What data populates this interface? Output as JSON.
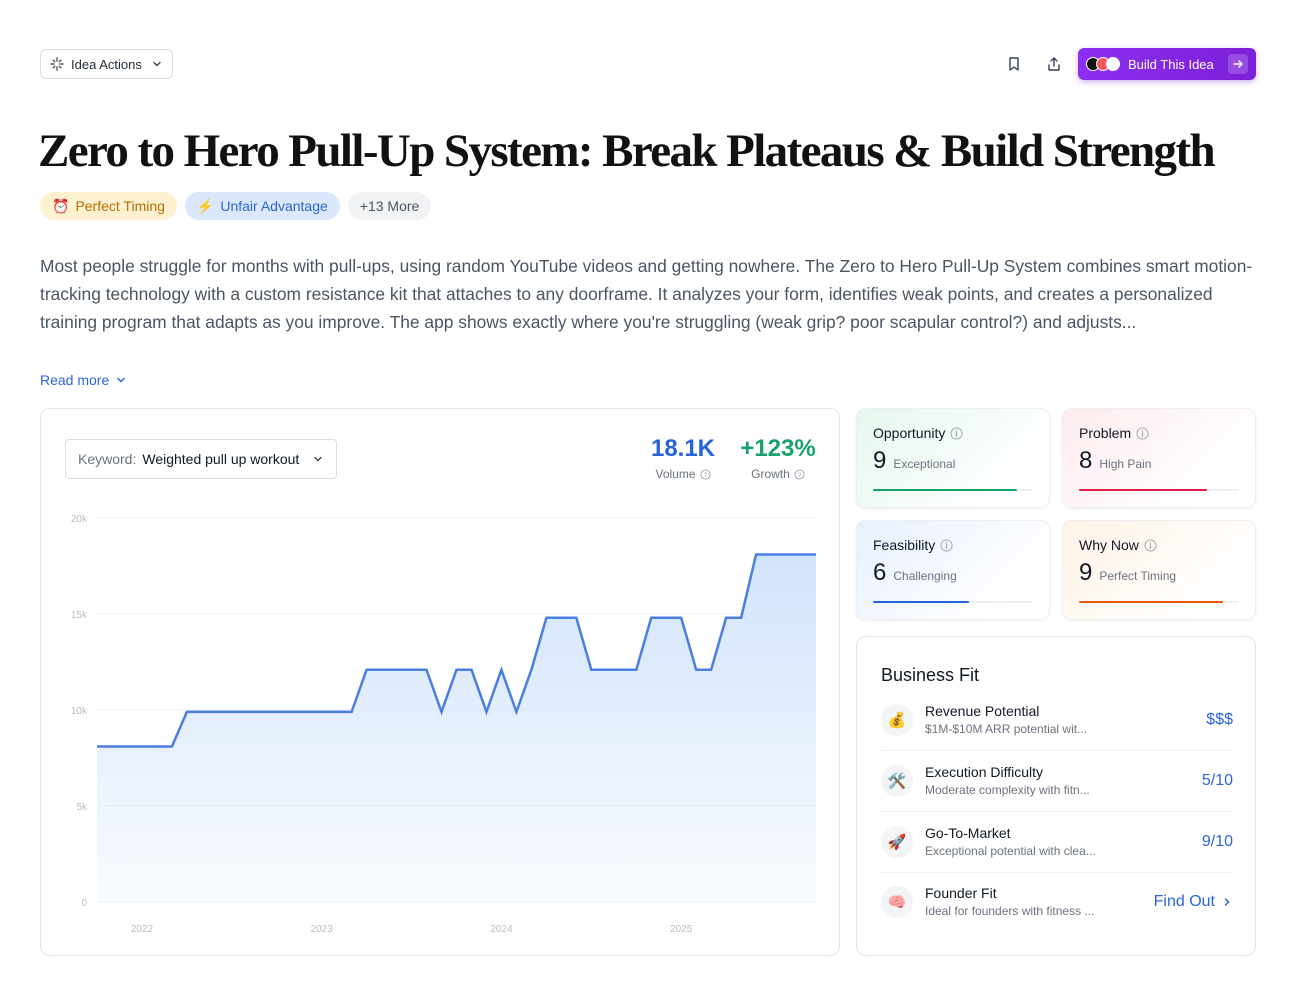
{
  "header": {
    "idea_actions_label": "Idea Actions",
    "build_label": "Build This Idea"
  },
  "title": "Zero to Hero Pull-Up System: Break Plateaus & Build Strength",
  "tags": [
    {
      "icon": "⏰",
      "label": "Perfect Timing"
    },
    {
      "icon": "⚡",
      "label": "Unfair Advantage"
    },
    {
      "label": "+13 More"
    }
  ],
  "description": "Most people struggle for months with pull-ups, using random YouTube videos and getting nowhere. The Zero to Hero Pull-Up System combines smart motion-tracking technology with a custom resistance kit that attaches to any doorframe. It analyzes your form, identifies weak points, and creates a personalized training program that adapts as you improve. The app shows exactly where you're struggling (weak grip? poor scapular control?) and adjusts...",
  "read_more_label": "Read more",
  "keyword": {
    "label": "Keyword:",
    "value": "Weighted pull up workout"
  },
  "stats": {
    "volume": {
      "value": "18.1K",
      "label": "Volume",
      "color": "#2563d9"
    },
    "growth": {
      "value": "+123%",
      "label": "Growth",
      "color": "#16a36a"
    }
  },
  "chart_data": {
    "type": "area",
    "ylim": [
      0,
      20000
    ],
    "yticks": [
      "0",
      "5k",
      "10k",
      "15k",
      "20k"
    ],
    "xticks": [
      "2022",
      "2023",
      "2024",
      "2025"
    ],
    "x": [
      "2021-10",
      "2021-11",
      "2021-12",
      "2022-01",
      "2022-02",
      "2022-03",
      "2022-04",
      "2022-05",
      "2022-06",
      "2022-07",
      "2022-08",
      "2022-09",
      "2022-10",
      "2022-11",
      "2022-12",
      "2023-01",
      "2023-02",
      "2023-03",
      "2023-04",
      "2023-05",
      "2023-06",
      "2023-07",
      "2023-08",
      "2023-09",
      "2023-10",
      "2023-11",
      "2023-12",
      "2024-01",
      "2024-02",
      "2024-03",
      "2024-04",
      "2024-05",
      "2024-06",
      "2024-07",
      "2024-08",
      "2024-09",
      "2024-10",
      "2024-11",
      "2024-12",
      "2025-01",
      "2025-02",
      "2025-03",
      "2025-04",
      "2025-05",
      "2025-06",
      "2025-07",
      "2025-08",
      "2025-09",
      "2025-10"
    ],
    "values": [
      8100,
      8100,
      8100,
      8100,
      8100,
      8100,
      9900,
      9900,
      9900,
      9900,
      9900,
      9900,
      9900,
      9900,
      9900,
      9900,
      9900,
      9900,
      12100,
      12100,
      12100,
      12100,
      12100,
      9900,
      12100,
      12100,
      9900,
      12100,
      9900,
      12100,
      14800,
      14800,
      14800,
      12100,
      12100,
      12100,
      12100,
      14800,
      14800,
      14800,
      12100,
      12100,
      14800,
      14800,
      18100,
      18100,
      18100,
      18100,
      18100
    ],
    "line_color": "#4a7ee0",
    "fill_color": "#cfe2fb"
  },
  "metrics": [
    {
      "name": "Opportunity",
      "score": "9",
      "label": "Exceptional",
      "level": 0.9,
      "color": "#16a36a",
      "bg": "#e6f7ee"
    },
    {
      "name": "Problem",
      "score": "8",
      "label": "High Pain",
      "level": 0.8,
      "color": "#e11d48",
      "bg": "#fdecee"
    },
    {
      "name": "Feasibility",
      "score": "6",
      "label": "Challenging",
      "level": 0.6,
      "color": "#2563d9",
      "bg": "#e8f0fd"
    },
    {
      "name": "Why Now",
      "score": "9",
      "label": "Perfect Timing",
      "level": 0.9,
      "color": "#ea580c",
      "bg": "#fef3e6"
    }
  ],
  "business_fit": {
    "title": "Business Fit",
    "rows": [
      {
        "icon": "💰",
        "name": "Revenue Potential",
        "desc": "$1M-$10M ARR potential wit...",
        "value": "$$$"
      },
      {
        "icon": "🛠️",
        "name": "Execution Difficulty",
        "desc": "Moderate complexity with fitn...",
        "value": "5/10"
      },
      {
        "icon": "🚀",
        "name": "Go-To-Market",
        "desc": "Exceptional potential with clea...",
        "value": "9/10"
      },
      {
        "icon": "🧠",
        "name": "Founder Fit",
        "desc": "Ideal for founders with fitness ...",
        "value": "Find Out"
      }
    ]
  }
}
